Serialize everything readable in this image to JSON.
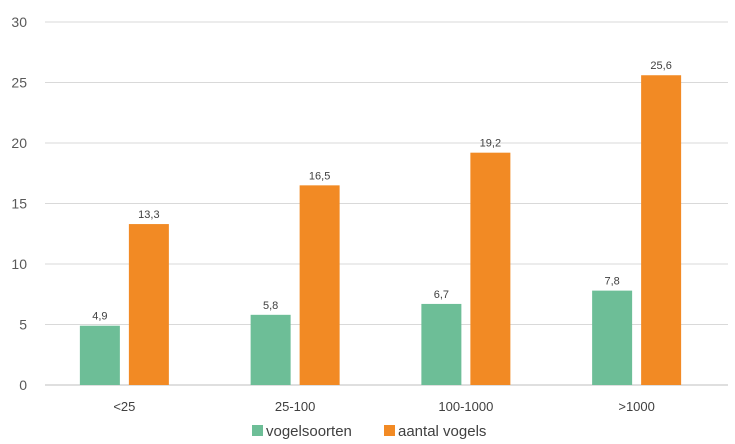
{
  "chart_data": {
    "type": "bar",
    "title": "",
    "categories": [
      "<25",
      "25-100",
      "100-1000",
      ">1000"
    ],
    "series": [
      {
        "name": "vogelsoorten",
        "color": "#6dbe97",
        "values": [
          4.9,
          5.8,
          6.7,
          7.8
        ],
        "labels": [
          "4,9",
          "5,8",
          "6,7",
          "7,8"
        ]
      },
      {
        "name": "aantal vogels",
        "color": "#f28a24",
        "values": [
          13.3,
          16.5,
          19.2,
          25.6
        ],
        "labels": [
          "13,3",
          "16,5",
          "19,2",
          "25,6"
        ]
      }
    ],
    "ylim": [
      0,
      30
    ],
    "yticks": [
      0,
      5,
      10,
      15,
      20,
      25,
      30
    ],
    "grid": true,
    "legend": "bottom-center",
    "colors": {
      "grid": "#d9d9d9",
      "axis": "#bfbfbf"
    }
  }
}
